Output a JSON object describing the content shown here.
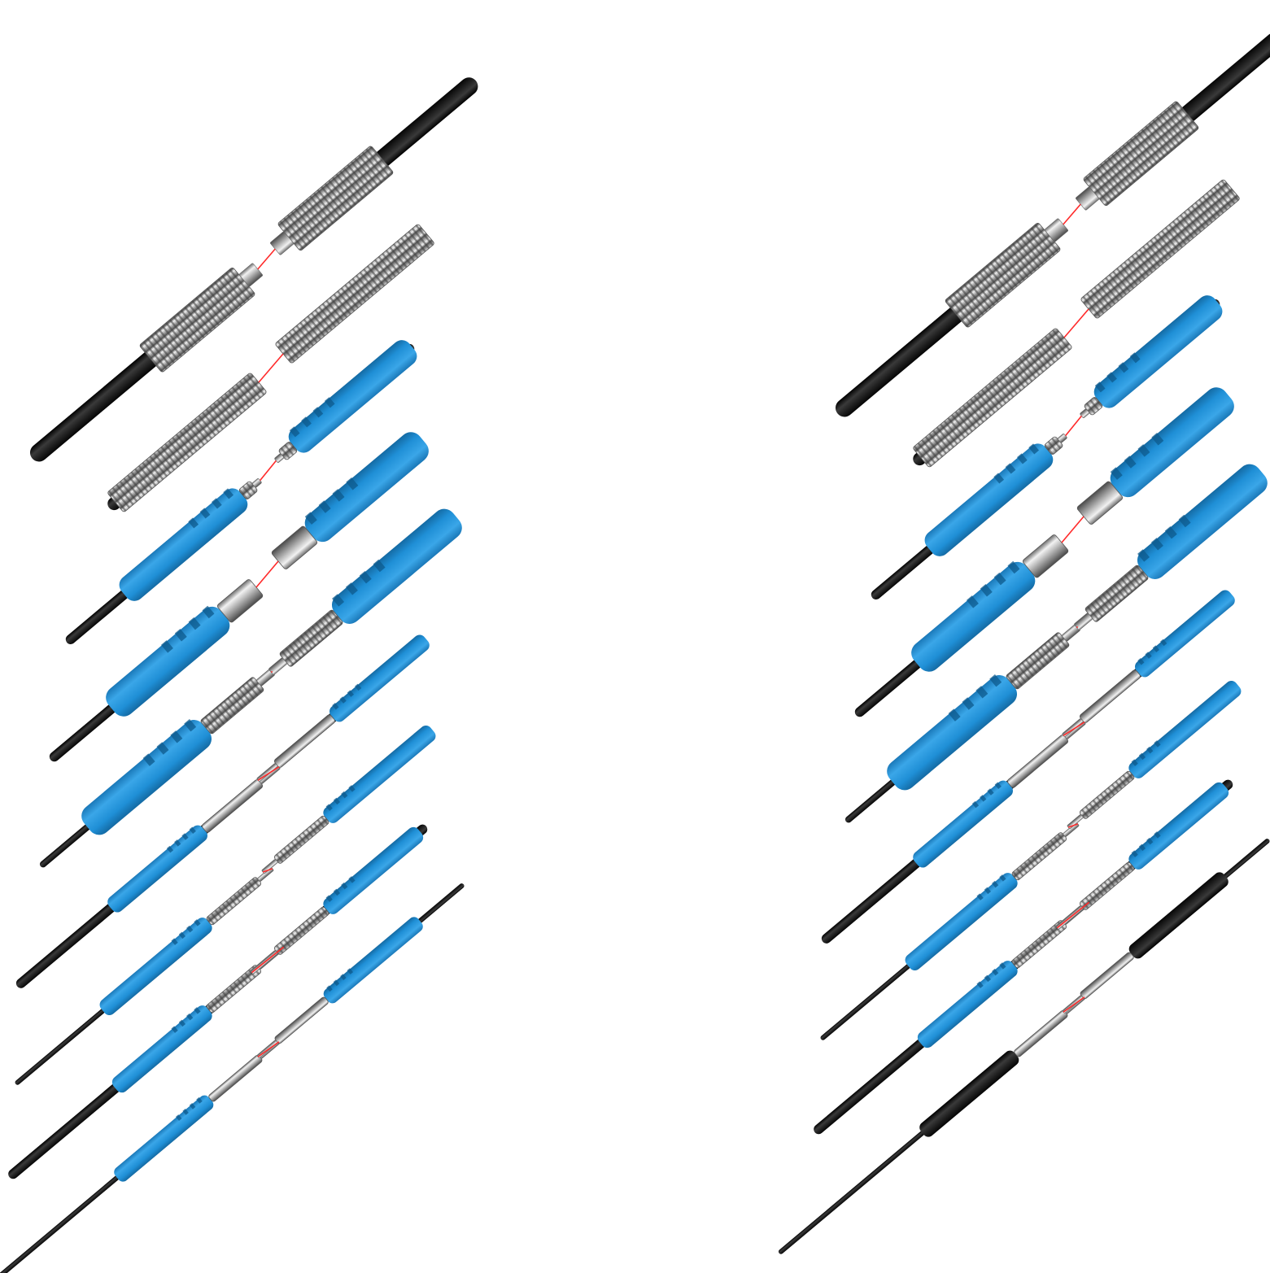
{
  "colors": {
    "background": "#ffffff",
    "cable": "#111111",
    "sleeve_blue": "#1f8fd6",
    "sleeve_black": "#151515",
    "metal_light": "#e6e6e6",
    "metal_mid": "#a9a9a9",
    "metal_dark": "#5e5e5e",
    "beam": "#ff2a2a"
  },
  "panels": [
    {
      "name": "left-set",
      "pairs": [
        {
          "head": "threaded-large",
          "sleeve": "none"
        },
        {
          "head": "threaded-long",
          "sleeve": "none"
        },
        {
          "head": "threaded-tip",
          "sleeve": "blue"
        },
        {
          "head": "cylinder",
          "sleeve": "blue"
        },
        {
          "head": "threaded-tip",
          "sleeve": "blue"
        },
        {
          "head": "needle",
          "sleeve": "blue"
        },
        {
          "head": "threaded-small",
          "sleeve": "blue"
        },
        {
          "head": "threaded-needle",
          "sleeve": "blue"
        },
        {
          "head": "needle",
          "sleeve": "black"
        }
      ]
    },
    {
      "name": "right-set",
      "pairs": [
        {
          "head": "threaded-large",
          "sleeve": "none"
        },
        {
          "head": "threaded-long",
          "sleeve": "none"
        },
        {
          "head": "threaded-tip",
          "sleeve": "blue"
        },
        {
          "head": "cylinder",
          "sleeve": "blue"
        },
        {
          "head": "threaded-tip",
          "sleeve": "blue"
        },
        {
          "head": "needle",
          "sleeve": "blue"
        },
        {
          "head": "threaded-small",
          "sleeve": "blue"
        },
        {
          "head": "threaded-needle",
          "sleeve": "blue"
        },
        {
          "head": "needle",
          "sleeve": "black"
        }
      ]
    }
  ]
}
